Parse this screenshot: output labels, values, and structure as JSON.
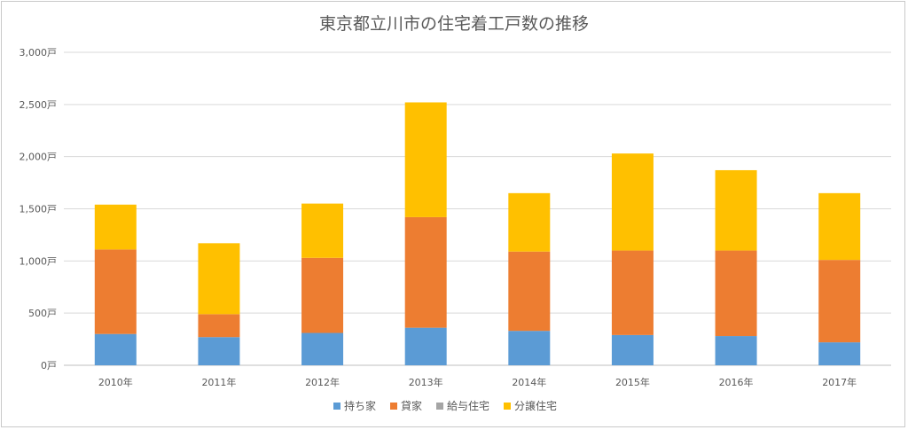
{
  "chart_data": {
    "type": "bar",
    "stacked": true,
    "title": "東京都立川市の住宅着工戸数の推移",
    "categories": [
      "2010年",
      "2011年",
      "2012年",
      "2013年",
      "2014年",
      "2015年",
      "2016年",
      "2017年"
    ],
    "yticks": [
      "0戸",
      "500戸",
      "1,000戸",
      "1,500戸",
      "2,000戸",
      "2,500戸",
      "3,000戸"
    ],
    "ylim": [
      0,
      3000
    ],
    "grid": true,
    "legend_position": "bottom",
    "series": [
      {
        "name": "持ち家",
        "color": "#5b9bd5",
        "values": [
          300,
          270,
          310,
          360,
          330,
          290,
          280,
          220
        ]
      },
      {
        "name": "貸家",
        "color": "#ed7d31",
        "values": [
          810,
          220,
          720,
          1060,
          760,
          810,
          820,
          790
        ]
      },
      {
        "name": "給与住宅",
        "color": "#a5a5a5",
        "values": [
          0,
          0,
          0,
          0,
          0,
          0,
          0,
          0
        ]
      },
      {
        "name": "分譲住宅",
        "color": "#ffc000",
        "values": [
          430,
          680,
          520,
          1100,
          560,
          930,
          770,
          640
        ]
      }
    ]
  }
}
